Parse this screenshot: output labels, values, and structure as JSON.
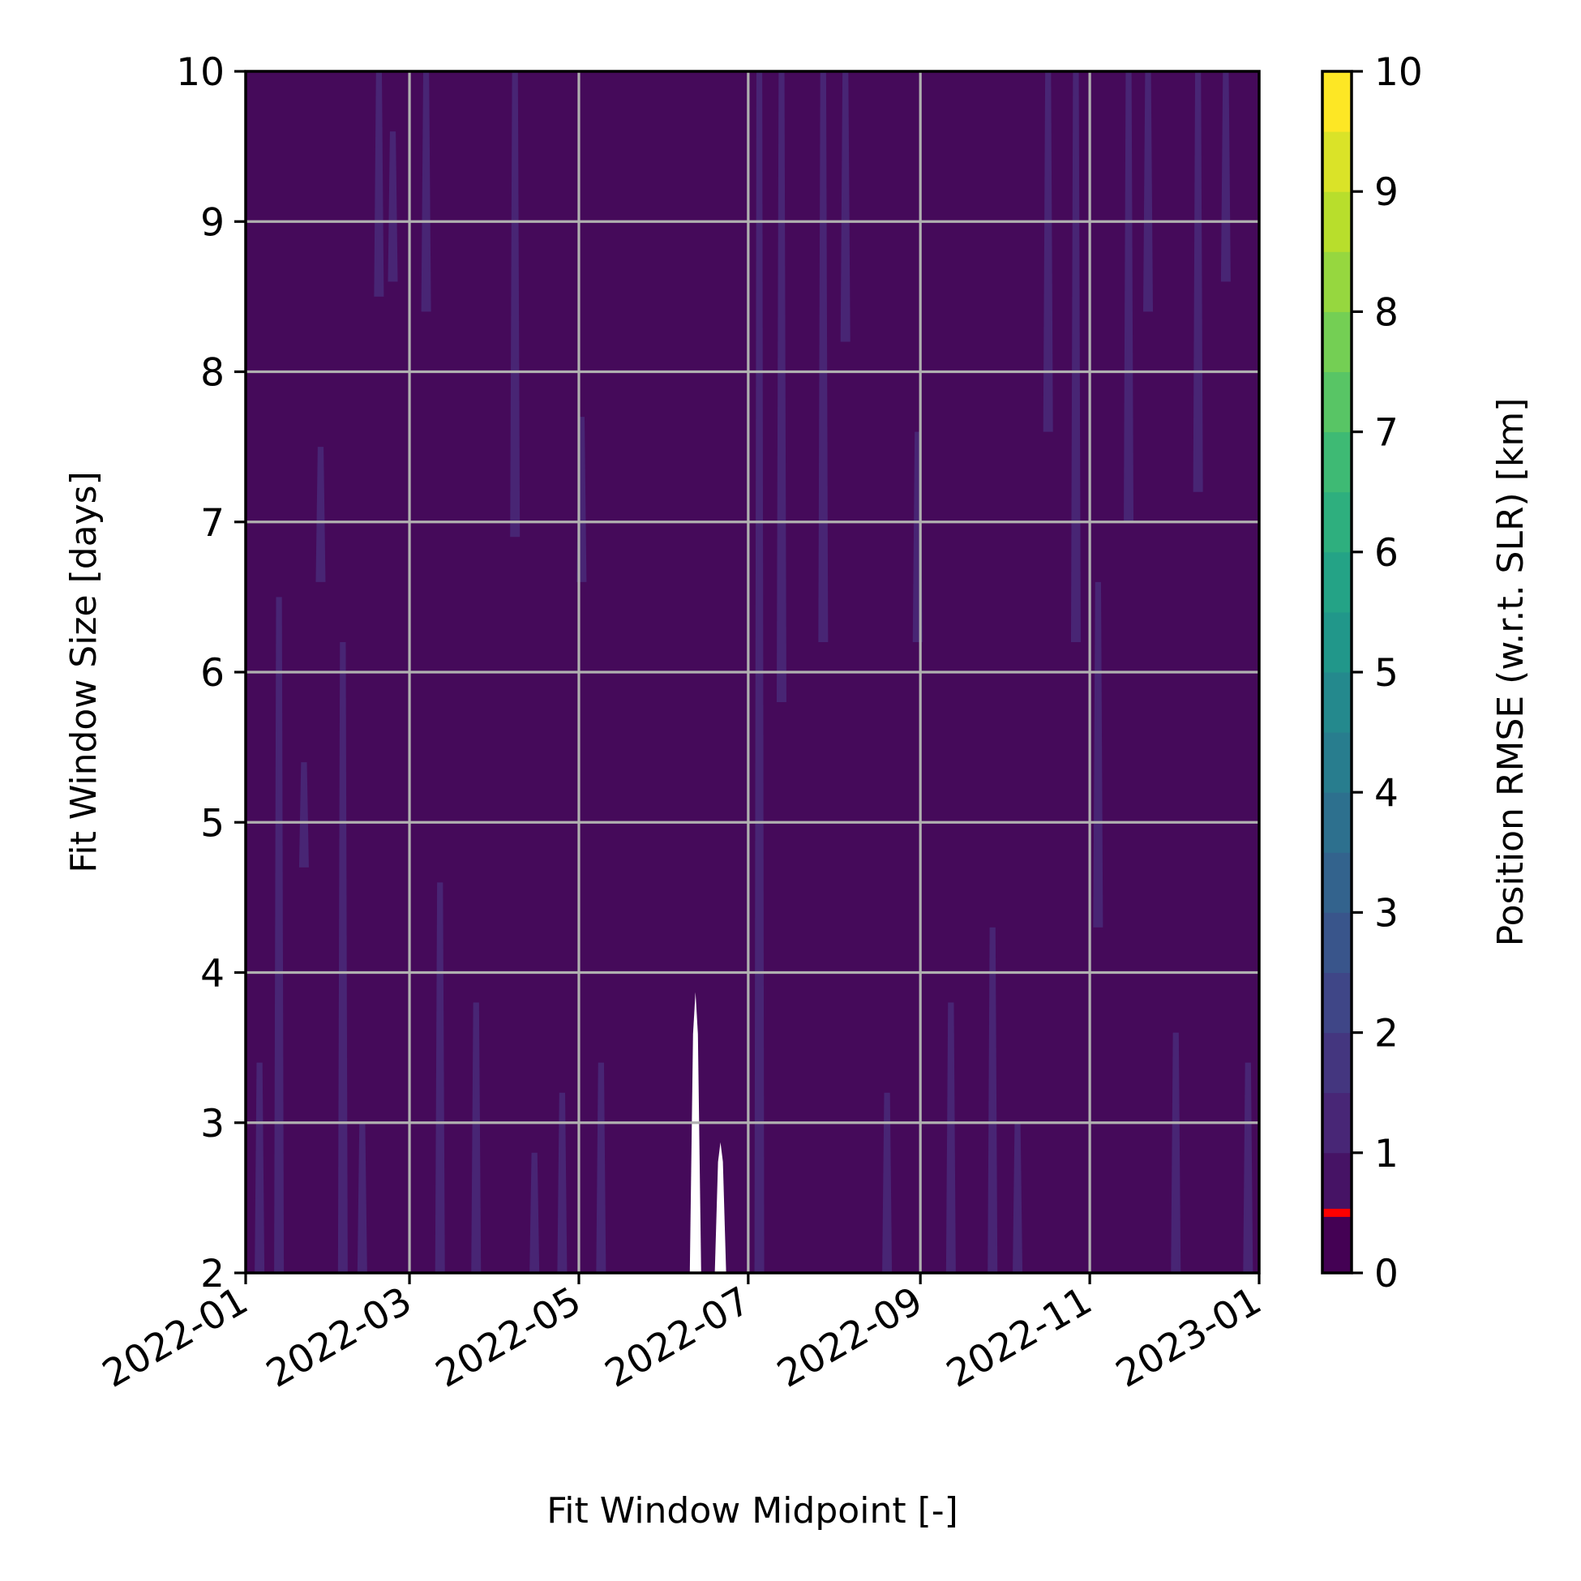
{
  "chart_data": {
    "type": "heatmap",
    "title": "",
    "xlabel": "Fit Window Midpoint [-]",
    "ylabel": "Fit Window Size [days]",
    "colorbar_label": "Position RMSE (w.r.t. SLR) [km]",
    "colormap": "viridis",
    "x_range": [
      "2022-01-01",
      "2023-01-01"
    ],
    "x_ticks": [
      "2022-01",
      "2022-03",
      "2022-05",
      "2022-07",
      "2022-09",
      "2022-11",
      "2023-01"
    ],
    "ylim": [
      2,
      10
    ],
    "y_ticks": [
      "2",
      "3",
      "4",
      "5",
      "6",
      "7",
      "8",
      "9",
      "10"
    ],
    "colorbar_range": [
      0,
      10
    ],
    "colorbar_ticks": [
      "0",
      "1",
      "2",
      "3",
      "4",
      "5",
      "6",
      "7",
      "8",
      "9",
      "10"
    ],
    "colorbar_levels": 20,
    "colorbar_marker": {
      "value": 0.5,
      "color": "#ff0000"
    },
    "grid": true,
    "background_value": 0.25,
    "background_level_color": "#450a5a",
    "streak_level_color": "#482574",
    "gaps": [
      {
        "date": "2022-06-12",
        "y_top": 3.87
      },
      {
        "date": "2022-06-21",
        "y_top": 2.87
      }
    ],
    "streaks": [
      {
        "date": "2022-01-06",
        "y_from": 2.0,
        "y_to": 3.4
      },
      {
        "date": "2022-01-13",
        "y_from": 2.0,
        "y_to": 6.5
      },
      {
        "date": "2022-01-22",
        "y_from": 4.7,
        "y_to": 5.4
      },
      {
        "date": "2022-01-28",
        "y_from": 6.6,
        "y_to": 7.5
      },
      {
        "date": "2022-02-05",
        "y_from": 2.0,
        "y_to": 6.2
      },
      {
        "date": "2022-02-12",
        "y_from": 2.0,
        "y_to": 3.0
      },
      {
        "date": "2022-02-18",
        "y_from": 8.5,
        "y_to": 10.0
      },
      {
        "date": "2022-02-23",
        "y_from": 8.6,
        "y_to": 9.6
      },
      {
        "date": "2022-03-07",
        "y_from": 8.4,
        "y_to": 10.0
      },
      {
        "date": "2022-03-12",
        "y_from": 2.0,
        "y_to": 4.6
      },
      {
        "date": "2022-03-25",
        "y_from": 2.0,
        "y_to": 3.8
      },
      {
        "date": "2022-04-08",
        "y_from": 6.9,
        "y_to": 10.0
      },
      {
        "date": "2022-04-15",
        "y_from": 2.0,
        "y_to": 2.8
      },
      {
        "date": "2022-04-25",
        "y_from": 2.0,
        "y_to": 3.2
      },
      {
        "date": "2022-05-02",
        "y_from": 6.6,
        "y_to": 7.7
      },
      {
        "date": "2022-05-09",
        "y_from": 2.0,
        "y_to": 3.4
      },
      {
        "date": "2022-07-05",
        "y_from": 2.0,
        "y_to": 10.0
      },
      {
        "date": "2022-07-13",
        "y_from": 5.8,
        "y_to": 10.0
      },
      {
        "date": "2022-07-28",
        "y_from": 6.2,
        "y_to": 10.0
      },
      {
        "date": "2022-08-05",
        "y_from": 8.2,
        "y_to": 10.0
      },
      {
        "date": "2022-08-20",
        "y_from": 2.0,
        "y_to": 3.2
      },
      {
        "date": "2022-08-31",
        "y_from": 6.2,
        "y_to": 7.6
      },
      {
        "date": "2022-09-12",
        "y_from": 2.0,
        "y_to": 3.8
      },
      {
        "date": "2022-09-27",
        "y_from": 2.0,
        "y_to": 4.3
      },
      {
        "date": "2022-10-06",
        "y_from": 2.0,
        "y_to": 3.0
      },
      {
        "date": "2022-10-17",
        "y_from": 7.6,
        "y_to": 10.0
      },
      {
        "date": "2022-10-27",
        "y_from": 6.2,
        "y_to": 10.0
      },
      {
        "date": "2022-11-04",
        "y_from": 4.3,
        "y_to": 6.6
      },
      {
        "date": "2022-11-15",
        "y_from": 7.0,
        "y_to": 10.0
      },
      {
        "date": "2022-11-22",
        "y_from": 8.4,
        "y_to": 10.0
      },
      {
        "date": "2022-12-02",
        "y_from": 2.0,
        "y_to": 3.6
      },
      {
        "date": "2022-12-10",
        "y_from": 7.2,
        "y_to": 10.0
      },
      {
        "date": "2022-12-20",
        "y_from": 8.6,
        "y_to": 10.0
      },
      {
        "date": "2022-12-28",
        "y_from": 2.0,
        "y_to": 3.4
      }
    ]
  }
}
